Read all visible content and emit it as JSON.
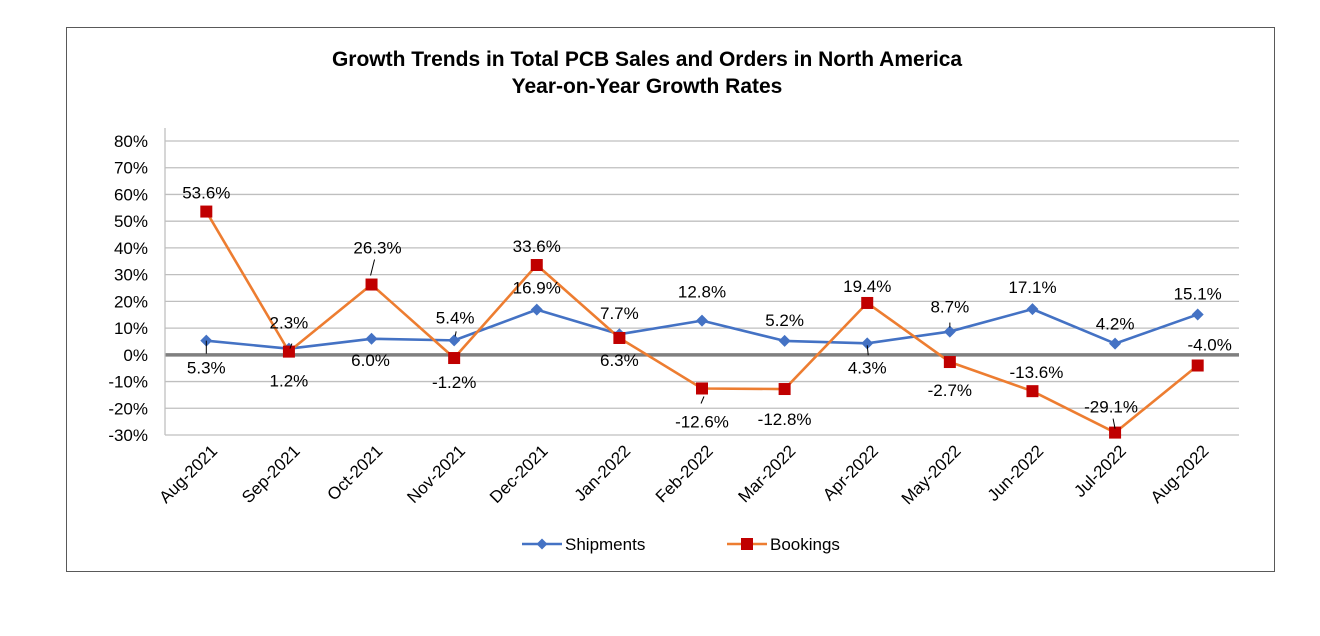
{
  "chart_data": {
    "type": "line",
    "title": "Growth Trends in Total PCB Sales and Orders in North America",
    "subtitle": "Year-on-Year Growth Rates",
    "xlabel": "",
    "ylabel": "",
    "ylim": [
      -30,
      80
    ],
    "ytick_step": 10,
    "ytick_labels": [
      "80%",
      "70%",
      "60%",
      "50%",
      "40%",
      "30%",
      "20%",
      "10%",
      "0%",
      "-10%",
      "-20%",
      "-30%"
    ],
    "grid": true,
    "legend_position": "bottom",
    "categories": [
      "Aug-2021",
      "Sep-2021",
      "Oct-2021",
      "Nov-2021",
      "Dec-2021",
      "Jan-2022",
      "Feb-2022",
      "Mar-2022",
      "Apr-2022",
      "May-2022",
      "Jun-2022",
      "Jul-2022",
      "Aug-2022"
    ],
    "series": [
      {
        "name": "Shipments",
        "marker": "diamond",
        "line_color": "#4472C4",
        "marker_color": "#4472C4",
        "values": [
          5.3,
          2.3,
          6.0,
          5.4,
          16.9,
          7.7,
          12.8,
          5.2,
          4.3,
          8.7,
          17.1,
          4.2,
          15.1
        ],
        "labels": [
          "5.3%",
          "2.3%",
          "6.0%",
          "5.4%",
          "16.9%",
          "7.7%",
          "12.8%",
          "5.2%",
          "4.3%",
          "8.7%",
          "17.1%",
          "4.2%",
          "15.1%"
        ]
      },
      {
        "name": "Bookings",
        "marker": "square",
        "line_color": "#ED7D31",
        "marker_color": "#C00000",
        "values": [
          53.6,
          1.2,
          26.3,
          -1.2,
          33.6,
          6.3,
          -12.6,
          -12.8,
          19.4,
          -2.7,
          -13.6,
          -29.1,
          -4.0
        ],
        "labels": [
          "53.6%",
          "1.2%",
          "26.3%",
          "-1.2%",
          "33.6%",
          "6.3%",
          "-12.6%",
          "-12.8%",
          "19.4%",
          "-2.7%",
          "-13.6%",
          "-29.1%",
          "-4.0%"
        ]
      }
    ],
    "colors": {
      "gridline": "#BFBFBF",
      "zero_line": "#7F7F7F",
      "axis": "#BFBFBF",
      "frame": "#595959"
    }
  }
}
